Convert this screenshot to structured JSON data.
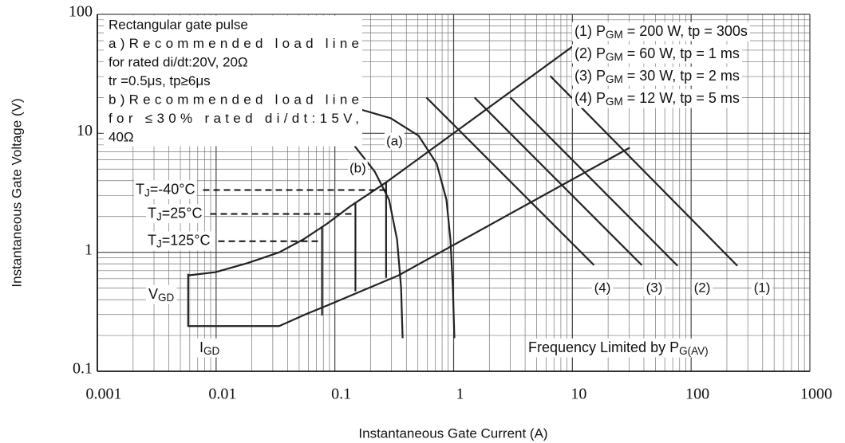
{
  "chart_data": {
    "type": "line",
    "log_x": true,
    "log_y": true,
    "grid": true,
    "color": "#222222",
    "xlabel": "Instantaneous Gate Current (A)",
    "ylabel": "Instantaneous Gate Voltage (V)",
    "xlim": [
      0.001,
      1000
    ],
    "ylim": [
      0.1,
      100
    ],
    "xticks": [
      0.001,
      0.01,
      0.1,
      1,
      10,
      100,
      1000
    ],
    "yticks": [
      0.1,
      1,
      10,
      100
    ],
    "xminor": [
      0.002,
      0.003,
      0.004,
      0.005,
      0.006,
      0.007,
      0.008,
      0.009,
      0.02,
      0.03,
      0.04,
      0.05,
      0.06,
      0.07,
      0.08,
      0.09,
      0.2,
      0.3,
      0.4,
      0.5,
      0.6,
      0.7,
      0.8,
      0.9,
      2,
      3,
      4,
      5,
      6,
      7,
      8,
      9,
      20,
      30,
      40,
      50,
      60,
      70,
      80,
      90,
      200,
      300,
      400,
      500,
      600,
      700,
      800,
      900
    ],
    "yminor": [
      0.2,
      0.3,
      0.4,
      0.5,
      0.6,
      0.7,
      0.8,
      0.9,
      2,
      3,
      4,
      5,
      6,
      7,
      8,
      9,
      20,
      30,
      40,
      50,
      60,
      70,
      80,
      90
    ],
    "note": [
      "Rectangular gate pulse",
      "a)Recommended load line",
      "for rated di/dt:20V, 20Ω",
      "tr =0.5μs, tp≥6μs",
      "b)Recommended load line",
      "for ≤30% rated di/dt:15V,",
      "40Ω"
    ],
    "series": [
      {
        "x": [
          0.00582,
          0.0098,
          0.0183,
          0.034,
          0.054,
          0.086,
          0.136,
          0.273,
          10.3
        ],
        "values": [
          0.64,
          0.68,
          0.81,
          1.0,
          1.28,
          1.74,
          2.45,
          3.9,
          54.7
        ]
      },
      {
        "x": [
          0.00582,
          0.00582,
          0.034,
          0.054,
          0.1,
          0.344,
          30.4
        ],
        "values": [
          0.66,
          0.24,
          0.24,
          0.295,
          0.38,
          0.64,
          7.57
        ]
      },
      {
        "name": "(a)",
        "x": [
          0.147,
          0.295,
          0.507,
          0.72,
          0.87,
          0.94,
          0.985,
          1.015
        ],
        "values": [
          16.4,
          13.4,
          9.55,
          5.56,
          2.77,
          1.28,
          0.507,
          0.19
        ]
      },
      {
        "name": "(b)",
        "x": [
          0.147,
          0.217,
          0.286,
          0.334,
          0.361,
          0.372
        ],
        "values": [
          7.8,
          4.76,
          2.77,
          1.28,
          0.507,
          0.19
        ]
      }
    ],
    "power_curves": [
      {
        "tag": "(1)",
        "label": [
          "(1) P",
          "GM",
          " = 200 W, tp = 300s"
        ],
        "x": [
          6.5,
          245
        ],
        "values": [
          30.4,
          0.77
        ]
      },
      {
        "tag": "(2)",
        "label": [
          "(2) P",
          "GM",
          " = 60 W, tp = 1 ms"
        ],
        "x": [
          3.0,
          76.9
        ],
        "values": [
          20,
          0.77
        ]
      },
      {
        "tag": "(3)",
        "label": [
          "(3) P",
          "GM",
          " = 30 W, tp = 2 ms"
        ],
        "x": [
          1.5,
          38.4
        ],
        "values": [
          20,
          0.78
        ]
      },
      {
        "tag": "(4)",
        "label": [
          "(4) P",
          "GM",
          " = 12 W, tp = 5 ms"
        ],
        "x": [
          0.59,
          15.2
        ],
        "values": [
          20,
          0.78
        ]
      }
    ],
    "tj_lines": [
      {
        "label": [
          "T",
          "J",
          "=-40°C"
        ],
        "x": 0.27,
        "y_range": [
          0.61,
          3.9
        ],
        "y_dash": 3.34
      },
      {
        "label": [
          "T",
          "J",
          "=25°C"
        ],
        "x": 0.149,
        "y_range": [
          0.47,
          2.65
        ],
        "y_dash": 2.1
      },
      {
        "label": [
          "T",
          "J",
          "=125°C"
        ],
        "x": 0.078,
        "y_range": [
          0.295,
          1.66
        ],
        "y_dash": 1.24
      }
    ],
    "vgd": [
      "V",
      "GD"
    ],
    "igd": [
      "I",
      "GD"
    ],
    "frequency_note": [
      "Frequency Limited by P",
      "G(AV)"
    ]
  }
}
